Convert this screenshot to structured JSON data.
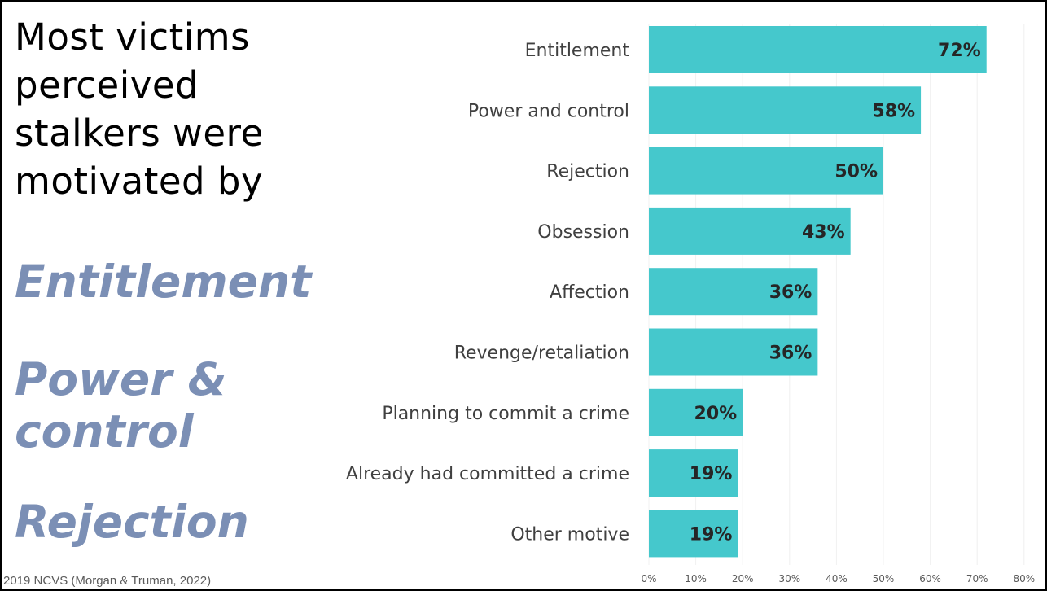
{
  "headline": {
    "line1": "Most victims",
    "line2": "perceived",
    "line3": "stalkers were",
    "line4": "motivated by"
  },
  "motives": [
    "Entitlement",
    "Power & control",
    "Rejection"
  ],
  "source": "2019 NCVS (Morgan & Truman, 2022)",
  "colors": {
    "bar": "#45c8cc",
    "motive_text": "#7b8fb5",
    "gridline": "#f0f0f0"
  },
  "chart_data": {
    "type": "bar",
    "orientation": "horizontal",
    "categories": [
      "Entitlement",
      "Power and control",
      "Rejection",
      "Obsession",
      "Affection",
      "Revenge/retaliation",
      "Planning to commit a crime",
      "Already had committed a crime",
      "Other motive"
    ],
    "values": [
      72,
      58,
      50,
      43,
      36,
      36,
      20,
      19,
      19
    ],
    "value_labels": [
      "72%",
      "58%",
      "50%",
      "43%",
      "36%",
      "36%",
      "20%",
      "19%",
      "19%"
    ],
    "xlim": [
      0,
      80
    ],
    "x_ticks": [
      "0%",
      "10%",
      "20%",
      "30%",
      "40%",
      "50%",
      "60%",
      "70%",
      "80%"
    ],
    "title": "",
    "xlabel": "",
    "ylabel": "",
    "grid": "vertical"
  }
}
